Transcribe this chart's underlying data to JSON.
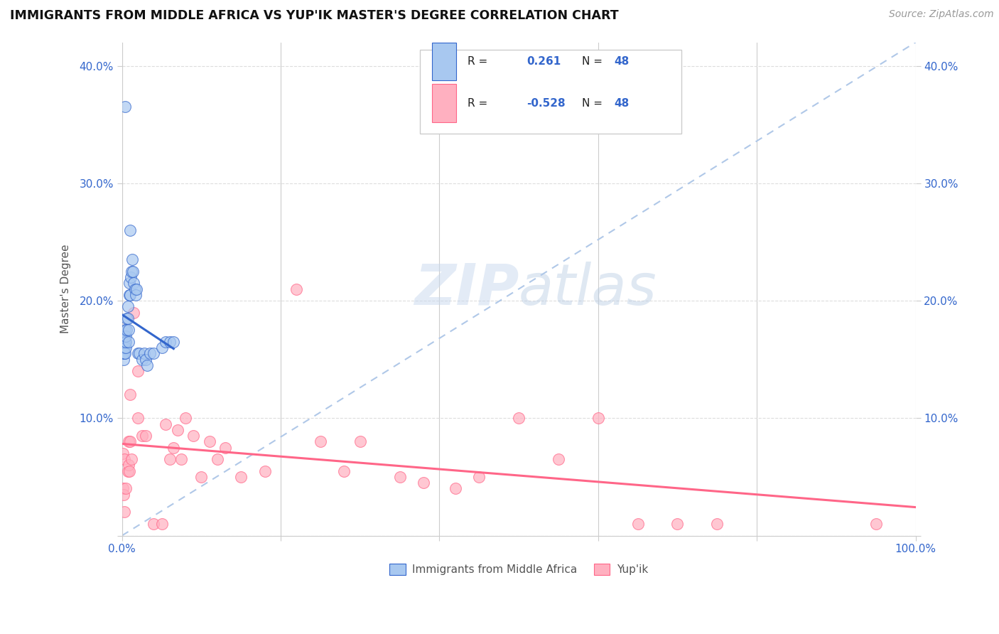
{
  "title": "IMMIGRANTS FROM MIDDLE AFRICA VS YUP'IK MASTER'S DEGREE CORRELATION CHART",
  "source_text": "Source: ZipAtlas.com",
  "ylabel": "Master's Degree",
  "xlim": [
    0.0,
    1.0
  ],
  "ylim": [
    0.0,
    0.42
  ],
  "x_ticks": [
    0.0,
    0.2,
    0.4,
    0.6,
    0.8,
    1.0
  ],
  "x_tick_labels": [
    "0.0%",
    "",
    "",
    "",
    "",
    "100.0%"
  ],
  "y_ticks": [
    0.0,
    0.1,
    0.2,
    0.3,
    0.4
  ],
  "y_tick_labels": [
    "",
    "10.0%",
    "20.0%",
    "30.0%",
    "40.0%"
  ],
  "r_blue": 0.261,
  "r_pink": -0.528,
  "n": 48,
  "blue_color": "#A8C8F0",
  "pink_color": "#FFB0C0",
  "trendline_blue": "#3366CC",
  "trendline_pink": "#FF6688",
  "dashed_color": "#B0C8E8",
  "legend_label_blue": "Immigrants from Middle Africa",
  "legend_label_pink": "Yup'ik",
  "watermark_zip": "ZIP",
  "watermark_atlas": "atlas",
  "blue_scatter_x": [
    0.001,
    0.001,
    0.001,
    0.002,
    0.002,
    0.002,
    0.002,
    0.003,
    0.003,
    0.003,
    0.003,
    0.004,
    0.004,
    0.004,
    0.005,
    0.005,
    0.005,
    0.006,
    0.006,
    0.007,
    0.007,
    0.008,
    0.008,
    0.009,
    0.009,
    0.01,
    0.011,
    0.012,
    0.013,
    0.014,
    0.015,
    0.016,
    0.017,
    0.018,
    0.02,
    0.022,
    0.025,
    0.028,
    0.03,
    0.032,
    0.035,
    0.04,
    0.05,
    0.055,
    0.06,
    0.065,
    0.01,
    0.004
  ],
  "blue_scatter_y": [
    0.155,
    0.16,
    0.17,
    0.15,
    0.155,
    0.165,
    0.17,
    0.155,
    0.16,
    0.165,
    0.17,
    0.155,
    0.165,
    0.175,
    0.16,
    0.165,
    0.17,
    0.175,
    0.185,
    0.185,
    0.195,
    0.165,
    0.175,
    0.205,
    0.215,
    0.205,
    0.22,
    0.225,
    0.235,
    0.225,
    0.215,
    0.21,
    0.205,
    0.21,
    0.155,
    0.155,
    0.15,
    0.155,
    0.15,
    0.145,
    0.155,
    0.155,
    0.16,
    0.165,
    0.165,
    0.165,
    0.26,
    0.365
  ],
  "pink_scatter_x": [
    0.001,
    0.001,
    0.002,
    0.003,
    0.003,
    0.005,
    0.007,
    0.008,
    0.008,
    0.009,
    0.01,
    0.01,
    0.012,
    0.015,
    0.02,
    0.02,
    0.025,
    0.03,
    0.04,
    0.05,
    0.055,
    0.06,
    0.065,
    0.07,
    0.075,
    0.08,
    0.09,
    0.1,
    0.11,
    0.12,
    0.13,
    0.15,
    0.18,
    0.22,
    0.25,
    0.28,
    0.3,
    0.35,
    0.38,
    0.42,
    0.45,
    0.5,
    0.55,
    0.6,
    0.65,
    0.7,
    0.75,
    0.95
  ],
  "pink_scatter_y": [
    0.07,
    0.04,
    0.035,
    0.065,
    0.02,
    0.04,
    0.055,
    0.08,
    0.06,
    0.055,
    0.12,
    0.08,
    0.065,
    0.19,
    0.14,
    0.1,
    0.085,
    0.085,
    0.01,
    0.01,
    0.095,
    0.065,
    0.075,
    0.09,
    0.065,
    0.1,
    0.085,
    0.05,
    0.08,
    0.065,
    0.075,
    0.05,
    0.055,
    0.21,
    0.08,
    0.055,
    0.08,
    0.05,
    0.045,
    0.04,
    0.05,
    0.1,
    0.065,
    0.1,
    0.01,
    0.01,
    0.01,
    0.01
  ]
}
